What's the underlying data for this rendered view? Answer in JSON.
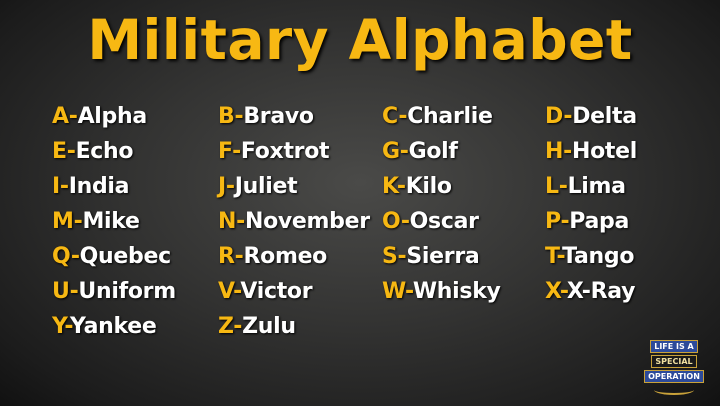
{
  "title": "Military Alphabet",
  "accent_color": "#f7b813",
  "entries": [
    {
      "letter": "A",
      "word": "Alpha"
    },
    {
      "letter": "B",
      "word": "Bravo"
    },
    {
      "letter": "C",
      "word": "Charlie"
    },
    {
      "letter": "D",
      "word": "Delta"
    },
    {
      "letter": "E",
      "word": "Echo"
    },
    {
      "letter": "F",
      "word": "Foxtrot"
    },
    {
      "letter": "G",
      "word": "Golf"
    },
    {
      "letter": "H",
      "word": "Hotel"
    },
    {
      "letter": "I",
      "word": "India"
    },
    {
      "letter": "J",
      "word": "Juliet"
    },
    {
      "letter": "K",
      "word": "Kilo"
    },
    {
      "letter": "L",
      "word": "Lima"
    },
    {
      "letter": "M",
      "word": "Mike"
    },
    {
      "letter": "N",
      "word": "November"
    },
    {
      "letter": "O",
      "word": "Oscar"
    },
    {
      "letter": "P",
      "word": "Papa"
    },
    {
      "letter": "Q",
      "word": "Quebec"
    },
    {
      "letter": "R",
      "word": "Romeo"
    },
    {
      "letter": "S",
      "word": "Sierra"
    },
    {
      "letter": "T",
      "word": "Tango"
    },
    {
      "letter": "U",
      "word": "Uniform"
    },
    {
      "letter": "V",
      "word": "Victor"
    },
    {
      "letter": "W",
      "word": "Whisky"
    },
    {
      "letter": "X",
      "word": "X-Ray"
    },
    {
      "letter": "Y",
      "word": "Yankee"
    },
    {
      "letter": "Z",
      "word": "Zulu"
    }
  ],
  "logo": {
    "line1": "LIFE IS A",
    "line2": "SPECIAL",
    "line3": "OPERATION"
  }
}
